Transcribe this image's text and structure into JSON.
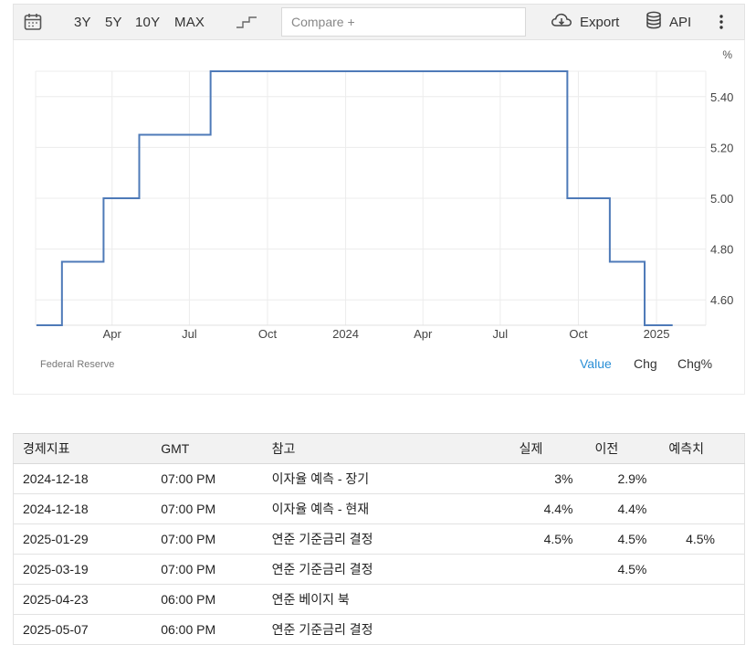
{
  "toolbar": {
    "calendar_icon": "calendar-icon",
    "ranges": [
      "3Y",
      "5Y",
      "10Y",
      "MAX"
    ],
    "chart_type_icon": "step-line-icon",
    "compare_placeholder": "Compare +",
    "export_label": "Export",
    "export_icon": "cloud-download-icon",
    "api_label": "API",
    "api_icon": "database-icon",
    "more_icon": "vertical-dots-icon"
  },
  "chart": {
    "unit_label": "%",
    "source": "Federal Reserve",
    "tabs": {
      "value": "Value",
      "chg": "Chg",
      "chgp": "Chg%"
    },
    "line_color": "#4e7ab8",
    "active_tab_color": "#2a8fd6"
  },
  "chart_data": {
    "type": "line",
    "step": true,
    "x_ticks": [
      "Apr",
      "Jul",
      "Oct",
      "2024",
      "Apr",
      "Jul",
      "Oct",
      "2025"
    ],
    "y_ticks": [
      "4.60",
      "4.80",
      "5.00",
      "5.20",
      "5.40"
    ],
    "ylim": [
      4.5,
      5.5
    ],
    "grid": true,
    "series": [
      {
        "points": [
          {
            "x": "2023-01-02",
            "y": 4.5
          },
          {
            "x": "2023-02-01",
            "y": 4.75
          },
          {
            "x": "2023-03-22",
            "y": 5.0
          },
          {
            "x": "2023-05-03",
            "y": 5.25
          },
          {
            "x": "2023-07-26",
            "y": 5.5
          },
          {
            "x": "2024-09-18",
            "y": 5.0
          },
          {
            "x": "2024-11-07",
            "y": 4.75
          },
          {
            "x": "2024-12-18",
            "y": 4.5
          },
          {
            "x": "2025-01-20",
            "y": 4.5
          }
        ]
      }
    ]
  },
  "table": {
    "headers": [
      "경제지표",
      "GMT",
      "참고",
      "실제",
      "이전",
      "예측치"
    ],
    "rows": [
      {
        "date": "2024-12-18",
        "time": "07:00 PM",
        "ref": "이자율 예측 - 장기",
        "actual": "3%",
        "previous": "2.9%",
        "forecast": ""
      },
      {
        "date": "2024-12-18",
        "time": "07:00 PM",
        "ref": "이자율 예측 - 현재",
        "actual": "4.4%",
        "previous": "4.4%",
        "forecast": ""
      },
      {
        "date": "2025-01-29",
        "time": "07:00 PM",
        "ref": "연준 기준금리 결정",
        "actual": "4.5%",
        "previous": "4.5%",
        "forecast": "4.5%"
      },
      {
        "date": "2025-03-19",
        "time": "07:00 PM",
        "ref": "연준 기준금리 결정",
        "actual": "",
        "previous": "4.5%",
        "forecast": ""
      },
      {
        "date": "2025-04-23",
        "time": "06:00 PM",
        "ref": "연준 베이지 북",
        "actual": "",
        "previous": "",
        "forecast": ""
      },
      {
        "date": "2025-05-07",
        "time": "06:00 PM",
        "ref": "연준 기준금리 결정",
        "actual": "",
        "previous": "",
        "forecast": ""
      }
    ]
  }
}
